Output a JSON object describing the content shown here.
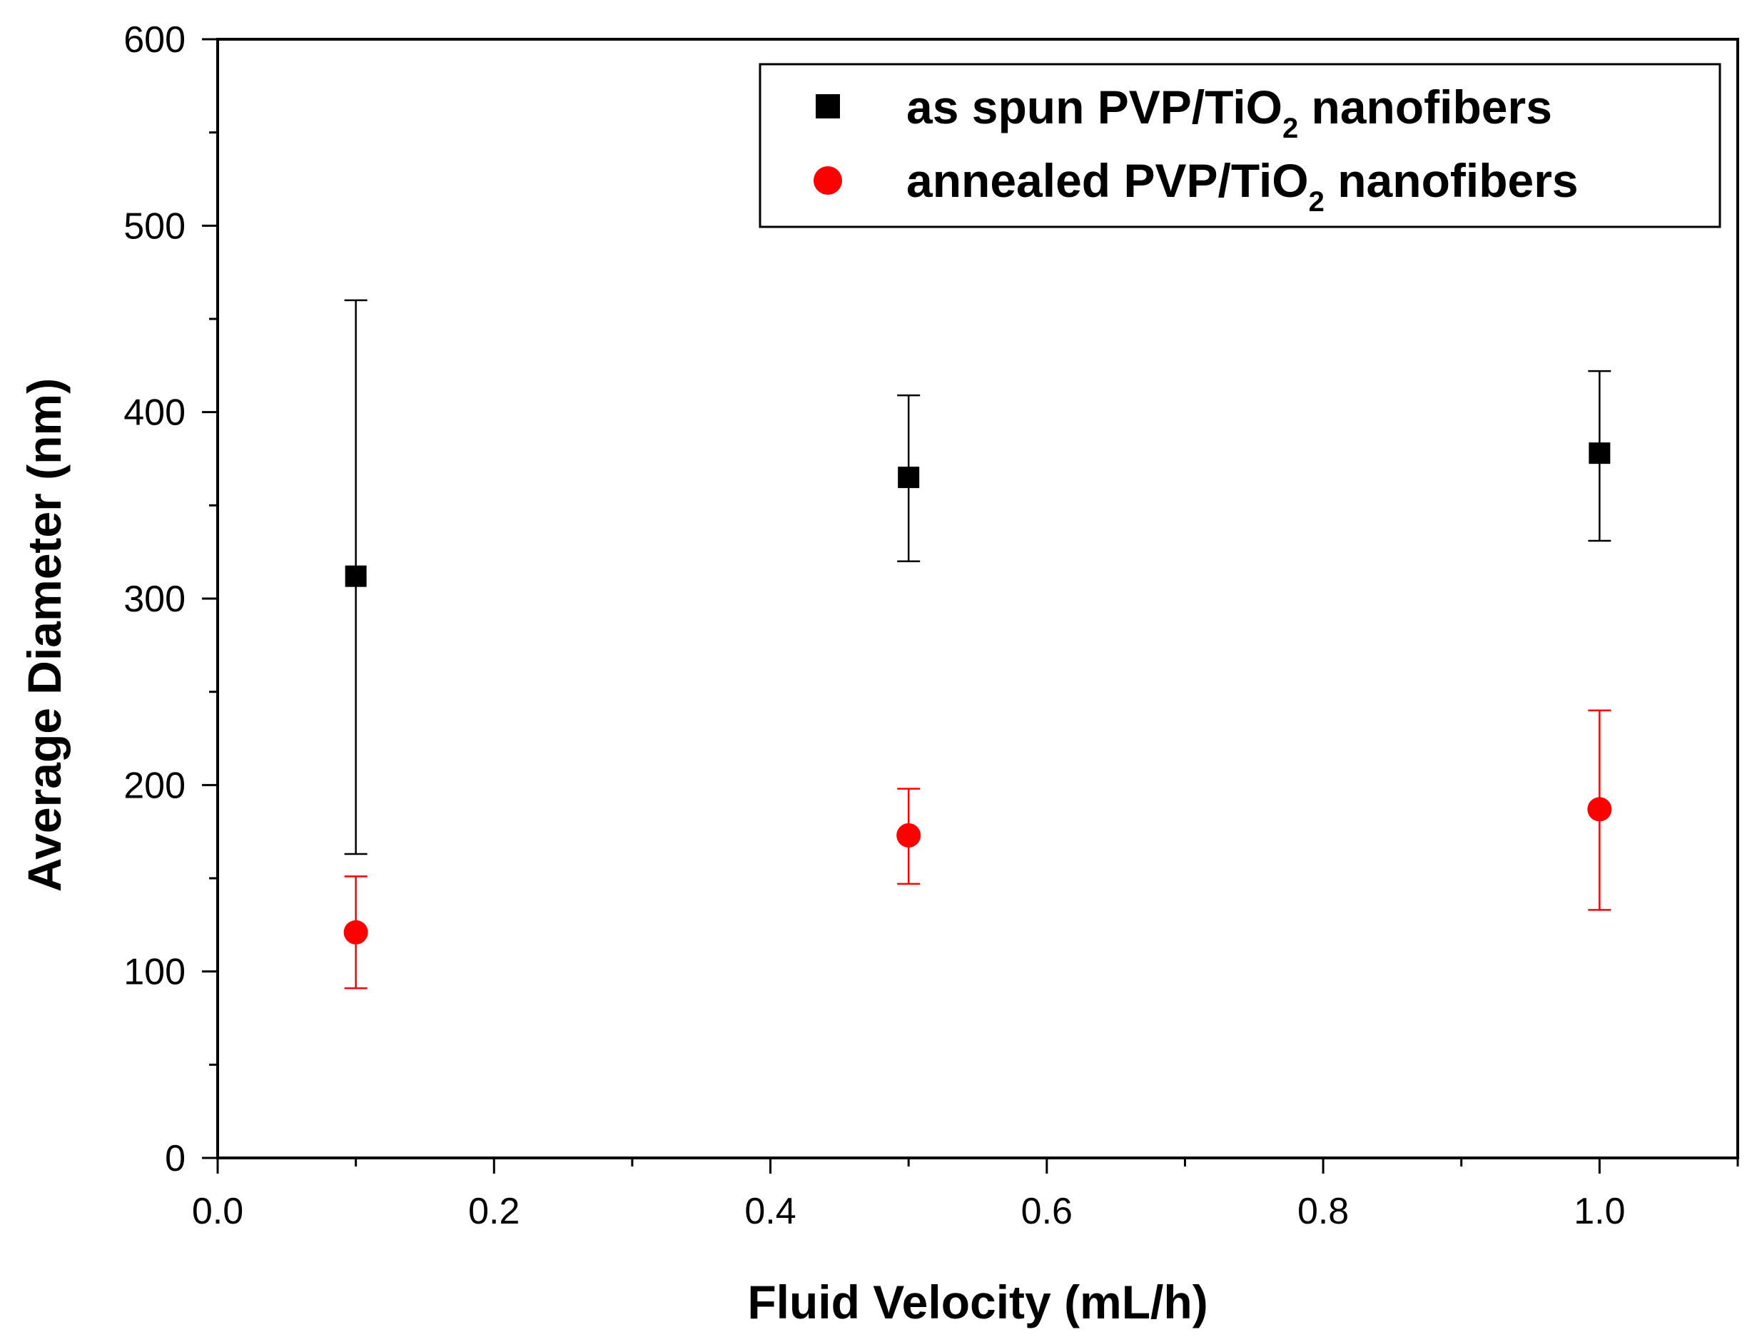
{
  "chart_data": {
    "type": "scatter",
    "xlabel": "Fluid Velocity (mL/h)",
    "ylabel": "Average Diameter (nm)",
    "xlim": [
      0.0,
      1.1
    ],
    "ylim": [
      0,
      600
    ],
    "xticks": [
      "0.0",
      "0.2",
      "0.4",
      "0.6",
      "0.8",
      "1.0"
    ],
    "yticks": [
      "0",
      "100",
      "200",
      "300",
      "400",
      "500",
      "600"
    ],
    "grid": false,
    "legend_position": "top-right",
    "series": [
      {
        "name": "as spun PVP/TiO2 nanofibers",
        "label_main": "as spun PVP/TiO",
        "label_sub": "2",
        "label_tail": " nanofibers",
        "marker": "square",
        "color": "#000000",
        "x": [
          0.1,
          0.5,
          1.0
        ],
        "y": [
          312,
          365,
          378
        ],
        "err_low": [
          163,
          320,
          331
        ],
        "err_high": [
          460,
          409,
          422
        ]
      },
      {
        "name": "annealed PVP/TiO2 nanofibers",
        "label_main": "annealed PVP/TiO",
        "label_sub": "2",
        "label_tail": " nanofibers",
        "marker": "circle",
        "color": "#ff0000",
        "x": [
          0.1,
          0.5,
          1.0
        ],
        "y": [
          121,
          173,
          187
        ],
        "err_low": [
          91,
          147,
          133
        ],
        "err_high": [
          151,
          198,
          240
        ]
      }
    ]
  }
}
